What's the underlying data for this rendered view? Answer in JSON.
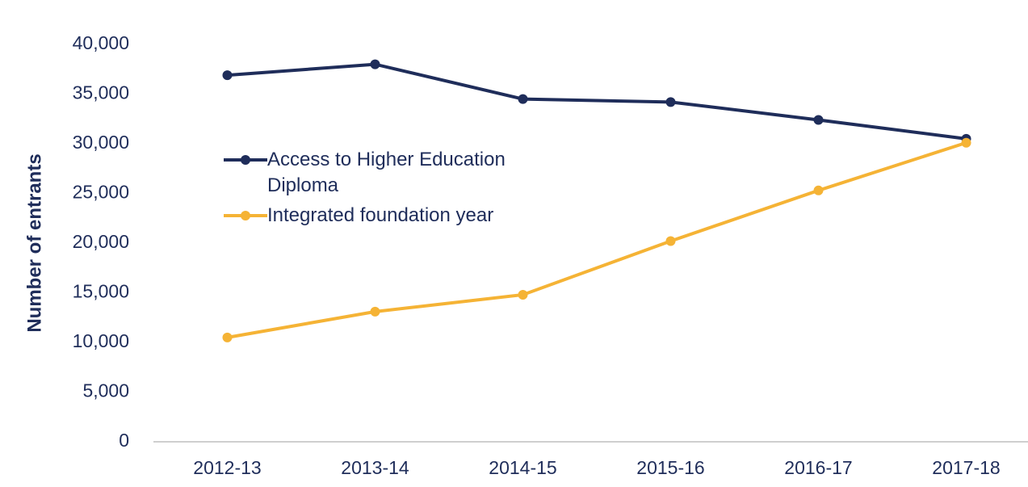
{
  "chart_data": {
    "type": "line",
    "ylabel": "Number of entrants",
    "categories": [
      "2012-13",
      "2013-14",
      "2014-15",
      "2015-16",
      "2016-17",
      "2017-18"
    ],
    "series": [
      {
        "name": "Access to Higher Education Diploma",
        "color": "#1f2d5a",
        "values": [
          36900,
          38000,
          34500,
          34200,
          32400,
          30500
        ]
      },
      {
        "name": "Integrated foundation year",
        "color": "#f5b335",
        "values": [
          10500,
          13100,
          14800,
          20200,
          25300,
          30100
        ]
      }
    ],
    "ylim": [
      0,
      40000
    ],
    "yticks": [
      0,
      {
        "value": 5000,
        "label": "5,000"
      },
      {
        "value": 10000,
        "label": "10,000"
      },
      {
        "value": 15000,
        "label": "15,000"
      },
      {
        "value": 20000,
        "label": "20,000"
      },
      {
        "value": 25000,
        "label": "25,000"
      },
      {
        "value": 30000,
        "label": "30,000"
      },
      {
        "value": 35000,
        "label": "35,000"
      },
      {
        "value": 40000,
        "label": "40,000"
      }
    ],
    "grid": false
  }
}
